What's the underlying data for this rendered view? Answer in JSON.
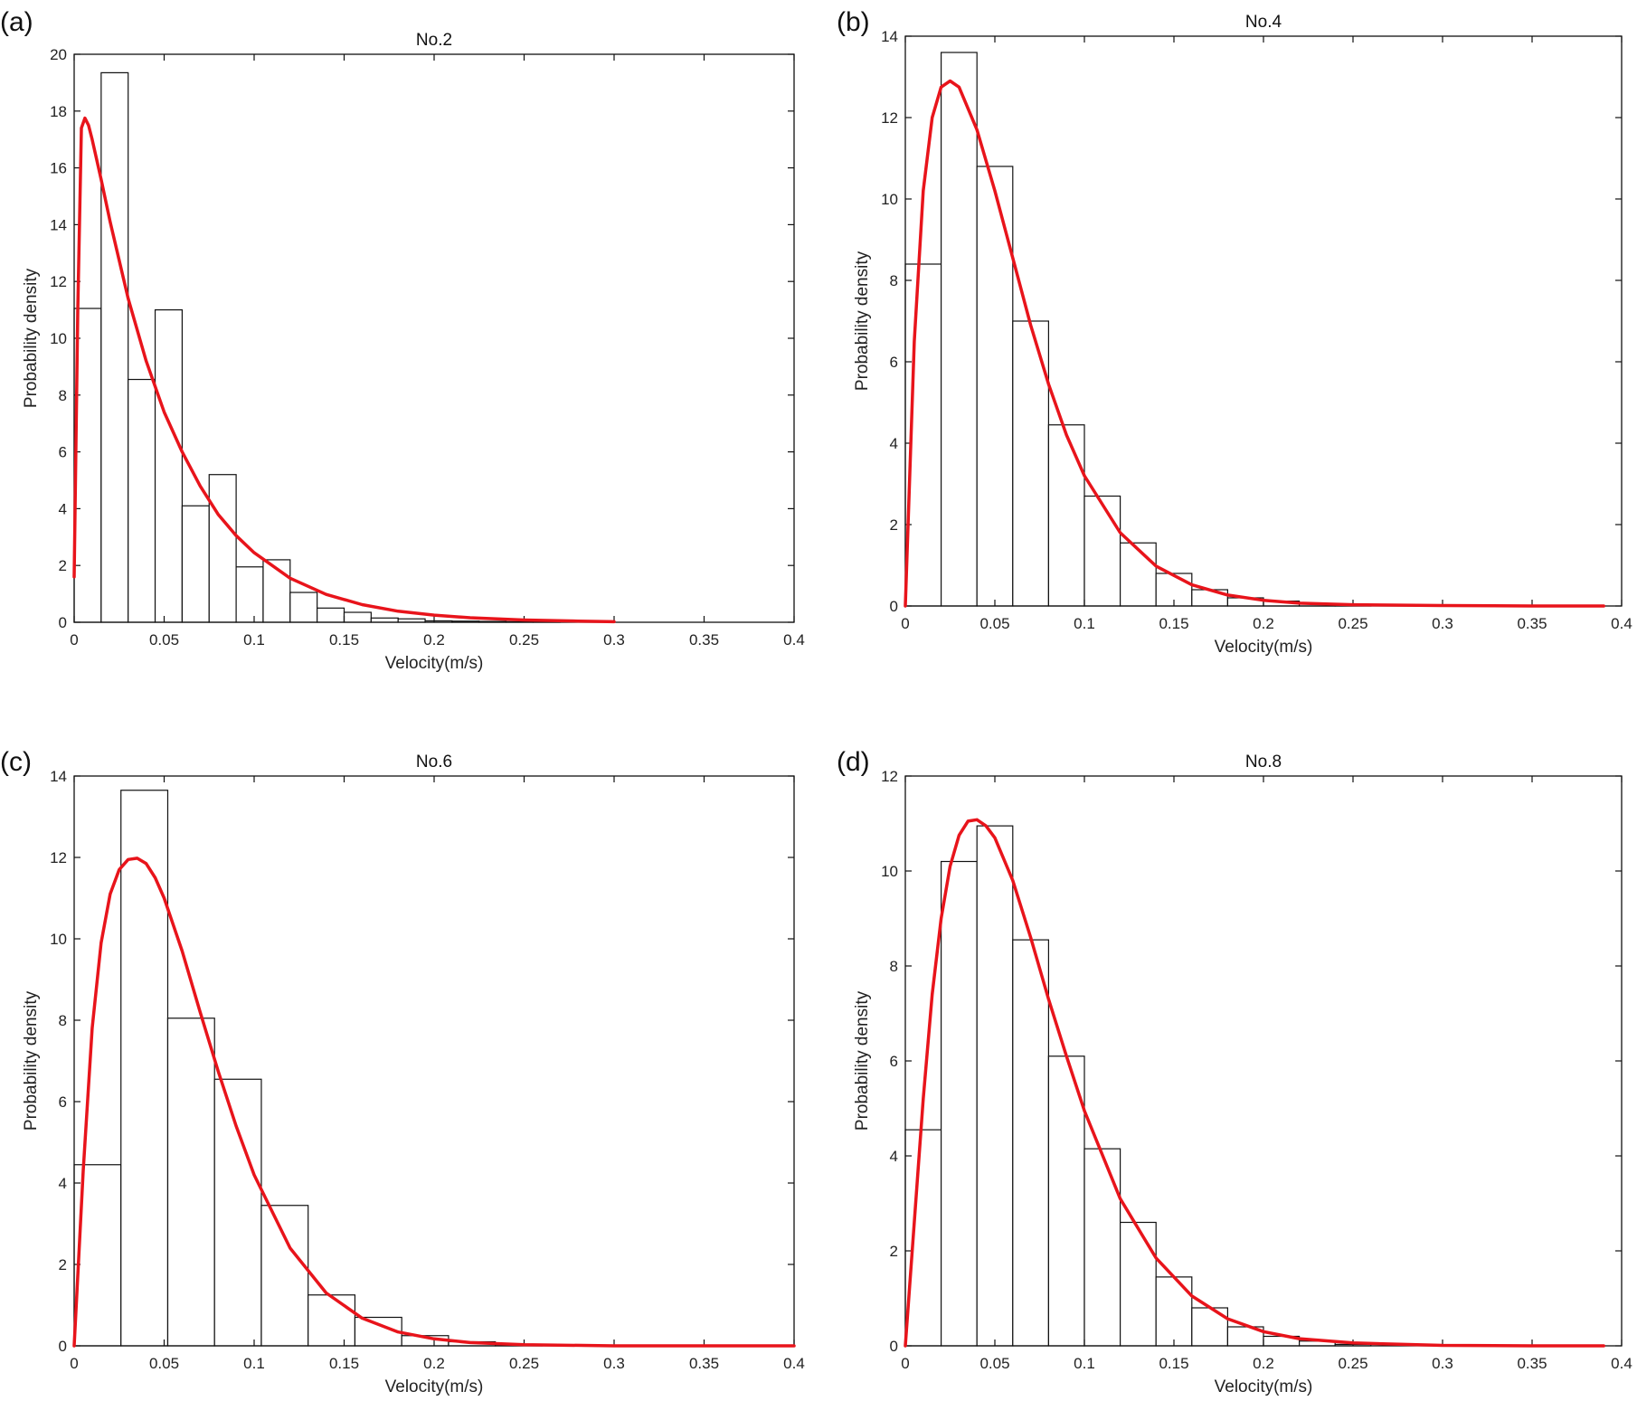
{
  "chart_data": [
    {
      "type": "bar",
      "panel_label": "(a)",
      "title": "No.2",
      "xlabel": "Velocity(m/s)",
      "ylabel": "Probability density",
      "xlim": [
        0,
        0.4
      ],
      "ylim": [
        0,
        20
      ],
      "xticks": [
        "0",
        "0.05",
        "0.1",
        "0.15",
        "0.2",
        "0.25",
        "0.3",
        "0.35",
        "0.4"
      ],
      "yticks": [
        "0",
        "2",
        "4",
        "6",
        "8",
        "10",
        "12",
        "14",
        "16",
        "18",
        "20"
      ],
      "bin_edges": [
        0,
        0.015,
        0.03,
        0.045,
        0.06,
        0.075,
        0.09,
        0.105,
        0.12,
        0.135,
        0.15,
        0.165,
        0.18,
        0.195,
        0.21,
        0.225,
        0.24,
        0.255,
        0.27
      ],
      "values": [
        11.05,
        19.35,
        8.55,
        11.0,
        4.1,
        5.2,
        1.95,
        2.2,
        1.05,
        0.5,
        0.35,
        0.15,
        0.12,
        0.05,
        0.04,
        0.03,
        0.02,
        0.01
      ],
      "curve": {
        "color": "#e8141b",
        "x": [
          0,
          0.002,
          0.004,
          0.006,
          0.008,
          0.01,
          0.015,
          0.02,
          0.03,
          0.04,
          0.05,
          0.06,
          0.07,
          0.08,
          0.09,
          0.1,
          0.12,
          0.14,
          0.16,
          0.18,
          0.2,
          0.22,
          0.25,
          0.28,
          0.3
        ],
        "y": [
          1.6,
          11.0,
          17.4,
          17.75,
          17.5,
          17.0,
          15.6,
          14.1,
          11.4,
          9.2,
          7.4,
          6.0,
          4.8,
          3.8,
          3.05,
          2.45,
          1.55,
          0.98,
          0.62,
          0.39,
          0.25,
          0.16,
          0.08,
          0.04,
          0.02
        ]
      }
    },
    {
      "type": "bar",
      "panel_label": "(b)",
      "title": "No.4",
      "xlabel": "Velocity(m/s)",
      "ylabel": "Probability density",
      "xlim": [
        0,
        0.4
      ],
      "ylim": [
        0,
        14
      ],
      "xticks": [
        "0",
        "0.05",
        "0.1",
        "0.15",
        "0.2",
        "0.25",
        "0.3",
        "0.35",
        "0.4"
      ],
      "yticks": [
        "0",
        "2",
        "4",
        "6",
        "8",
        "10",
        "12",
        "14"
      ],
      "bin_edges": [
        0,
        0.02,
        0.04,
        0.06,
        0.08,
        0.1,
        0.12,
        0.14,
        0.16,
        0.18,
        0.2,
        0.22,
        0.24,
        0.26
      ],
      "values": [
        8.4,
        13.6,
        10.8,
        7.0,
        4.45,
        2.7,
        1.55,
        0.8,
        0.4,
        0.2,
        0.12,
        0.06,
        0.02
      ],
      "curve": {
        "color": "#e8141b",
        "x": [
          0,
          0.005,
          0.01,
          0.015,
          0.02,
          0.025,
          0.03,
          0.04,
          0.05,
          0.06,
          0.07,
          0.08,
          0.09,
          0.1,
          0.12,
          0.14,
          0.16,
          0.18,
          0.2,
          0.22,
          0.25,
          0.3,
          0.35,
          0.39
        ],
        "y": [
          0,
          6.5,
          10.2,
          12.0,
          12.75,
          12.9,
          12.75,
          11.7,
          10.2,
          8.55,
          6.9,
          5.45,
          4.2,
          3.2,
          1.8,
          0.98,
          0.52,
          0.27,
          0.14,
          0.07,
          0.03,
          0.01,
          0.0,
          0.0
        ]
      }
    },
    {
      "type": "bar",
      "panel_label": "(c)",
      "title": "No.6",
      "xlabel": "Velocity(m/s)",
      "ylabel": "Probability density",
      "xlim": [
        0,
        0.4
      ],
      "ylim": [
        0,
        14
      ],
      "xticks": [
        "0",
        "0.05",
        "0.1",
        "0.15",
        "0.2",
        "0.25",
        "0.3",
        "0.35",
        "0.4"
      ],
      "yticks": [
        "0",
        "2",
        "4",
        "6",
        "8",
        "10",
        "12",
        "14"
      ],
      "bin_edges": [
        0,
        0.026,
        0.052,
        0.078,
        0.104,
        0.13,
        0.156,
        0.182,
        0.208,
        0.234,
        0.26
      ],
      "values": [
        4.45,
        13.65,
        8.05,
        6.55,
        3.45,
        1.25,
        0.7,
        0.25,
        0.1,
        0.03
      ],
      "curve": {
        "color": "#e8141b",
        "x": [
          0,
          0.005,
          0.01,
          0.015,
          0.02,
          0.025,
          0.03,
          0.035,
          0.04,
          0.045,
          0.05,
          0.06,
          0.07,
          0.08,
          0.09,
          0.1,
          0.12,
          0.14,
          0.16,
          0.18,
          0.2,
          0.22,
          0.25,
          0.3,
          0.35,
          0.4
        ],
        "y": [
          0,
          4.3,
          7.8,
          9.9,
          11.1,
          11.7,
          11.95,
          11.98,
          11.85,
          11.5,
          11.0,
          9.7,
          8.2,
          6.75,
          5.4,
          4.2,
          2.4,
          1.3,
          0.68,
          0.34,
          0.17,
          0.08,
          0.03,
          0.0,
          0.0,
          0.0
        ]
      }
    },
    {
      "type": "bar",
      "panel_label": "(d)",
      "title": "No.8",
      "xlabel": "Velocity(m/s)",
      "ylabel": "Probability density",
      "xlim": [
        0,
        0.4
      ],
      "ylim": [
        0,
        12
      ],
      "xticks": [
        "0",
        "0.05",
        "0.1",
        "0.15",
        "0.2",
        "0.25",
        "0.3",
        "0.35",
        "0.4"
      ],
      "yticks": [
        "0",
        "2",
        "4",
        "6",
        "8",
        "10",
        "12"
      ],
      "bin_edges": [
        0,
        0.02,
        0.04,
        0.06,
        0.08,
        0.1,
        0.12,
        0.14,
        0.16,
        0.18,
        0.2,
        0.22,
        0.24,
        0.26
      ],
      "values": [
        4.55,
        10.2,
        10.95,
        8.55,
        6.1,
        4.15,
        2.6,
        1.45,
        0.8,
        0.4,
        0.2,
        0.1,
        0.03
      ],
      "curve": {
        "color": "#e8141b",
        "x": [
          0,
          0.005,
          0.01,
          0.015,
          0.02,
          0.025,
          0.03,
          0.035,
          0.04,
          0.045,
          0.05,
          0.06,
          0.07,
          0.08,
          0.09,
          0.1,
          0.12,
          0.14,
          0.16,
          0.18,
          0.2,
          0.22,
          0.25,
          0.3,
          0.35,
          0.39
        ],
        "y": [
          0,
          2.6,
          5.2,
          7.4,
          9.0,
          10.1,
          10.75,
          11.05,
          11.08,
          10.95,
          10.7,
          9.8,
          8.6,
          7.3,
          6.1,
          4.95,
          3.1,
          1.85,
          1.05,
          0.57,
          0.3,
          0.15,
          0.06,
          0.01,
          0.0,
          0.0
        ]
      }
    }
  ]
}
